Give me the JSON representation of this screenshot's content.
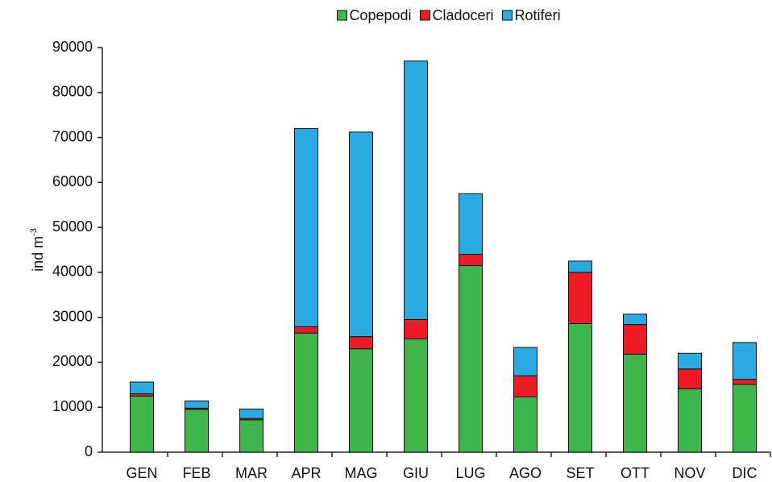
{
  "chart_data": {
    "type": "stacked_bar",
    "y_label": "ind m",
    "y_label_superscript": "-3",
    "categories": [
      "GEN",
      "FEB",
      "MAR",
      "APR",
      "MAG",
      "GIU",
      "LUG",
      "AGO",
      "SET",
      "OTT",
      "NOV",
      "DIC"
    ],
    "series": [
      {
        "name": "Copepodi",
        "color": "#3db54a",
        "values": [
          12500,
          9500,
          7200,
          26500,
          23000,
          25200,
          41500,
          12300,
          28600,
          21800,
          14100,
          15100
        ]
      },
      {
        "name": "Cladoceri",
        "color": "#ed1c24",
        "values": [
          500,
          300,
          300,
          1400,
          2700,
          4300,
          2500,
          4700,
          11400,
          6600,
          4400,
          1100
        ]
      },
      {
        "name": "Rotiferi",
        "color": "#29abe2",
        "values": [
          2600,
          1600,
          2100,
          44100,
          45500,
          57500,
          13500,
          6300,
          2500,
          2300,
          3500,
          8200
        ]
      }
    ],
    "ylim": [
      0,
      90000
    ],
    "yticks": [
      0,
      10000,
      20000,
      30000,
      40000,
      50000,
      60000,
      70000,
      80000,
      90000
    ],
    "grid": false,
    "legend": "top"
  }
}
